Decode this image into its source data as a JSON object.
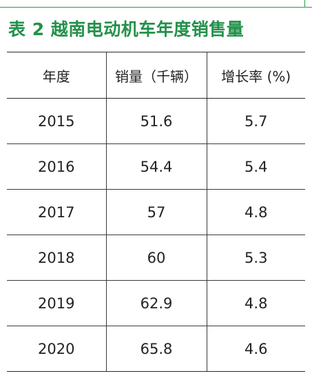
{
  "title": "表 2 越南电动机车年度销售量",
  "columns": [
    "年度",
    "销量（千辆）",
    "增长率 (%)"
  ],
  "rows": [
    {
      "year": "2015",
      "sales": "51.6",
      "growth": "5.7"
    },
    {
      "year": "2016",
      "sales": "54.4",
      "growth": "5.4"
    },
    {
      "year": "2017",
      "sales": "57",
      "growth": "4.8"
    },
    {
      "year": "2018",
      "sales": "60",
      "growth": "5.3"
    },
    {
      "year": "2019",
      "sales": "62.9",
      "growth": "4.8"
    },
    {
      "year": "2020",
      "sales": "65.8",
      "growth": "4.6"
    }
  ],
  "colors": {
    "title": "#23914a",
    "accent_rule": "#2b9a46",
    "text": "#222222",
    "border": "#3a3a3a"
  }
}
